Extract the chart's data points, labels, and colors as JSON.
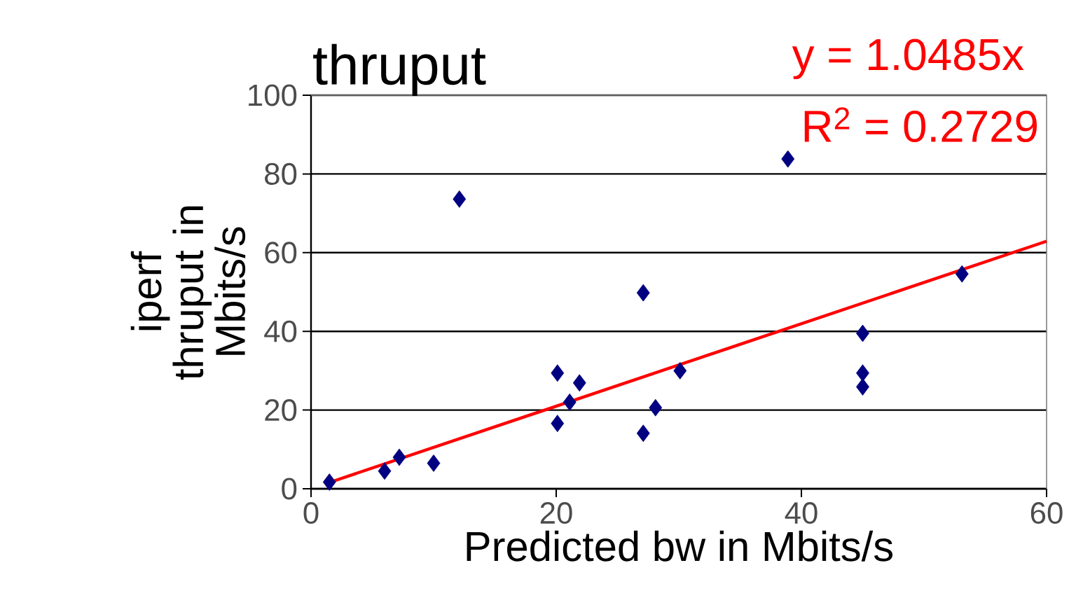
{
  "chart_data": {
    "type": "scatter",
    "title": "thruput",
    "xlabel": "Predicted bw in Mbits/s",
    "ylabel": "iperf thruput in Mbits/s",
    "annotations": [
      "y = 1.0485x",
      "R$^{2}$ = 0.2729"
    ],
    "xlim": [
      0,
      60
    ],
    "xticks": [
      0,
      20,
      40,
      60
    ],
    "ylim": [
      0,
      100
    ],
    "yticks": [
      0,
      20,
      40,
      60,
      80,
      100
    ],
    "grid": "y",
    "marker": "diamond",
    "series": [
      {
        "color": "#000080",
        "x": [
          1.5,
          6.0,
          7.2,
          10.0,
          12.1,
          20.1,
          20.1,
          21.1,
          21.9,
          27.1,
          27.1,
          28.1,
          30.1,
          38.9,
          45.0,
          45.0,
          45.0,
          53.1
        ],
        "values": [
          1.7,
          4.5,
          8.0,
          6.5,
          73.6,
          29.4,
          16.6,
          22,
          26.9,
          49.8,
          14.1,
          20.6,
          30,
          83.8,
          39.5,
          29.4,
          25.9,
          54.6
        ]
      },
      {
        "type": "line",
        "color": "#ff0000",
        "marker": "none",
        "x": [
          1.5,
          60
        ],
        "values": [
          1.6,
          62.9
        ]
      }
    ]
  }
}
